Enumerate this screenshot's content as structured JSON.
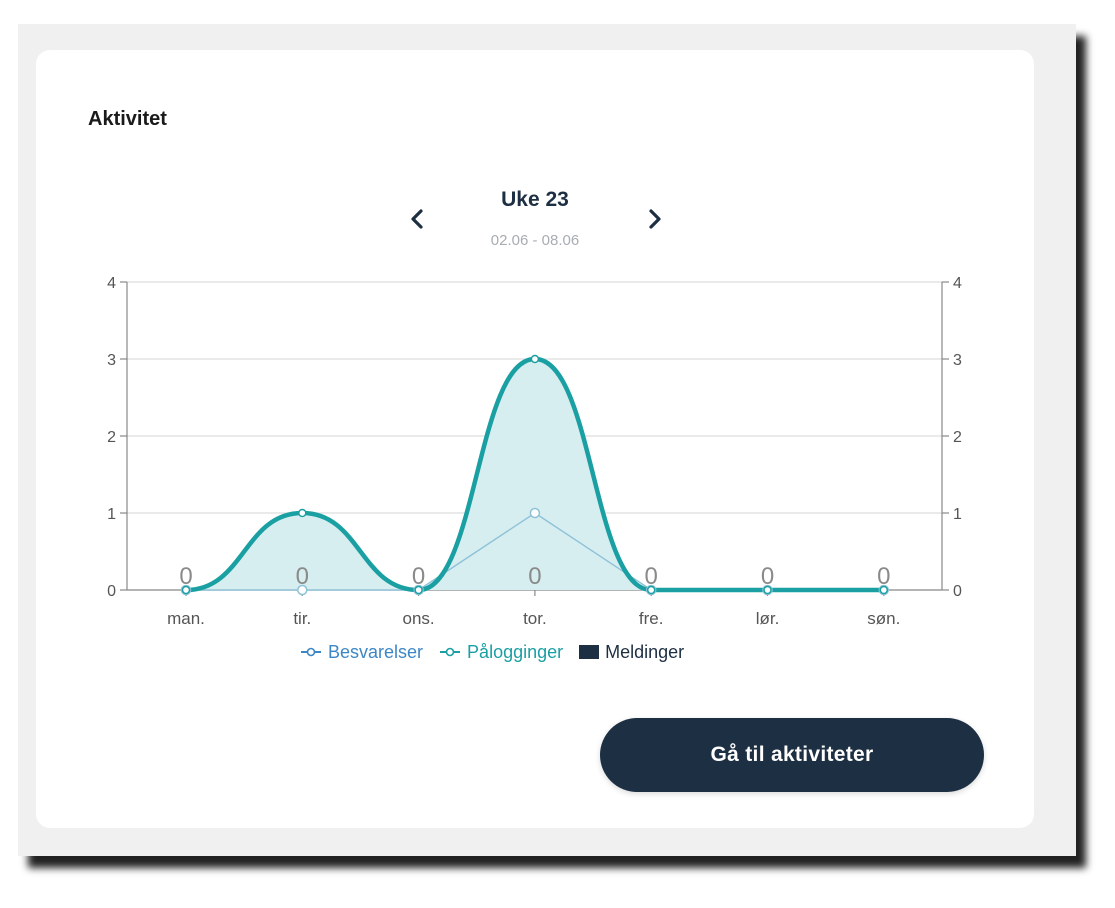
{
  "card": {
    "title": "Aktivitet",
    "week_label": "Uke 23",
    "date_range": "02.06 - 08.06",
    "prev_icon": "chevron-left-icon",
    "next_icon": "chevron-right-icon"
  },
  "colors": {
    "pageBackground": "#f0f0f1",
    "card": "#ffffff",
    "besvarelser": "#3d86c6",
    "palogginger": "#1aa0a3",
    "paloggingerFill": "#d7eef0",
    "meldinger": "#1d2f42",
    "grid": "#dddddd",
    "axisText": "#555555"
  },
  "chart_data": {
    "type": "line",
    "categories": [
      "man.",
      "tir.",
      "ons.",
      "tor.",
      "fre.",
      "lør.",
      "søn."
    ],
    "ylim": [
      0,
      4
    ],
    "y_ticks": [
      0,
      1,
      2,
      3,
      4
    ],
    "series": [
      {
        "name": "Besvarelser",
        "type": "line",
        "values": [
          0,
          0,
          0,
          1,
          0,
          0,
          0
        ]
      },
      {
        "name": "Pålogginger",
        "type": "area-spline",
        "values": [
          0,
          1,
          0,
          3,
          0,
          0,
          0
        ]
      },
      {
        "name": "Meldinger",
        "type": "bar",
        "values": [
          0,
          0,
          0,
          0,
          0,
          0,
          0
        ]
      }
    ],
    "data_labels": [
      "0",
      "0",
      "0",
      "0",
      "0",
      "0",
      "0"
    ],
    "legend_position": "bottom-center",
    "grid": true
  },
  "cta": {
    "label": "Gå til aktiviteter"
  }
}
